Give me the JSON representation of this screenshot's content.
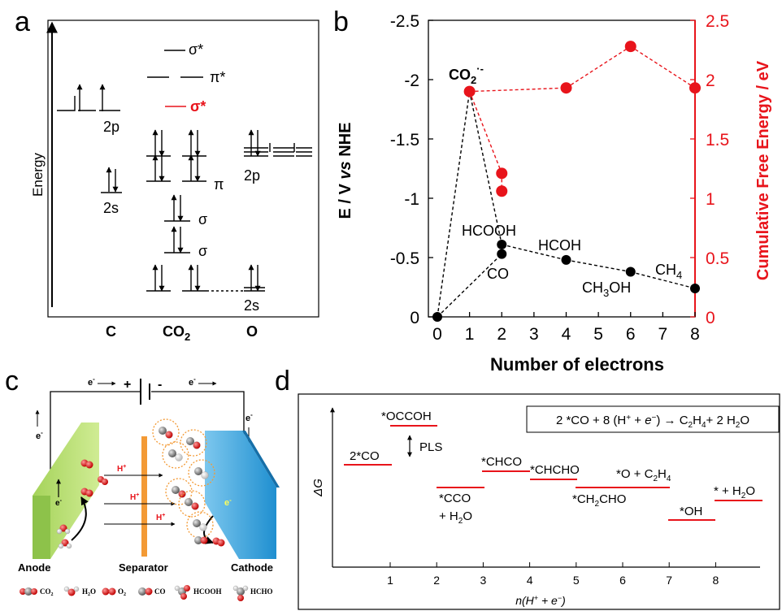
{
  "panel_a": {
    "letter": "a",
    "y_label": "Energy",
    "x_labels": [
      "C",
      "CO",
      "2",
      "O"
    ],
    "orbital_labels": {
      "c_2p": "2p",
      "c_2s": "2s",
      "sigma_star_top": "σ*",
      "pi_star": "π*",
      "sigma_star_red": "σ*",
      "pi": "π",
      "sigma_1": "σ",
      "sigma_2": "σ",
      "o_2p": "2p",
      "o_2s": "2s"
    },
    "colors": {
      "red": "#e8141b",
      "black": "#000000"
    }
  },
  "panel_b": {
    "letter": "b",
    "xlabel": "Number of electrons",
    "ylabel_left": "E / V vs NHE",
    "ylabel_left_parts": [
      "E / V ",
      "vs",
      " NHE"
    ],
    "ylabel_right": "Cumulative Free Energy / eV",
    "x_ticks": [
      "0",
      "1",
      "2",
      "3",
      "4",
      "5",
      "6",
      "7",
      "8"
    ],
    "y_left_ticks": [
      "-2.5",
      "-2",
      "-1.5",
      "-1",
      "-0.5",
      "0"
    ],
    "y_right_ticks": [
      "2.5",
      "2",
      "1.5",
      "1",
      "0.5",
      "0"
    ],
    "labels": {
      "co2_radical_main": "CO",
      "co2_radical_sub": "2",
      "co2_radical_sup": "·-",
      "hcooh": "HCOOH",
      "co": "CO",
      "hcoh": "HCOH",
      "ch4_main": "CH",
      "ch4_sub": "4",
      "ch3oh_a": "CH",
      "ch3oh_sub": "3",
      "ch3oh_b": "OH"
    },
    "colors": {
      "black": "#000000",
      "red": "#e8141b"
    }
  },
  "chart_data": [
    {
      "type": "line",
      "xlabel": "Number of electrons",
      "ylabel": "E / V vs NHE",
      "xlim": [
        0,
        8
      ],
      "ylim": [
        0,
        -2.5
      ],
      "axis_inverted": true,
      "series": [
        {
          "color": "#000000",
          "style": "dashed-with-markers",
          "points": [
            {
              "x": 0,
              "y": 0
            },
            {
              "x": 1,
              "y": -1.9
            },
            {
              "x": 2,
              "y": -0.61
            },
            {
              "x": 2,
              "y": -0.53
            },
            {
              "x": 4,
              "y": -0.48
            },
            {
              "x": 6,
              "y": -0.38
            },
            {
              "x": 8,
              "y": -0.24
            }
          ]
        }
      ]
    },
    {
      "type": "line",
      "xlabel": "Number of electrons",
      "ylabel": "Cumulative Free Energy / eV",
      "xlim": [
        0,
        8
      ],
      "ylim": [
        0,
        2.5
      ],
      "series": [
        {
          "color": "#e8141b",
          "style": "dashed-with-markers",
          "points": [
            {
              "x": 1,
              "y": 1.9
            },
            {
              "x": 2,
              "y": 1.21
            },
            {
              "x": 2,
              "y": 1.06
            },
            {
              "x": 4,
              "y": 1.93
            },
            {
              "x": 6,
              "y": 2.28
            },
            {
              "x": 8,
              "y": 1.93
            }
          ]
        }
      ]
    },
    {
      "type": "line",
      "xlabel": "n(H+ + e−)",
      "ylabel": "ΔG",
      "x_ticks": [
        "1",
        "2",
        "3",
        "4",
        "5",
        "6",
        "7",
        "8"
      ],
      "style": "free-energy-levels",
      "levels": [
        {
          "x": 0.5,
          "label": "2*CO",
          "rel_g": 0.0
        },
        {
          "x": 1.5,
          "label": "*OCCOH",
          "rel_g": 1.0
        },
        {
          "x": 2.5,
          "label": "*CCO + H2O",
          "rel_g": -0.35
        },
        {
          "x": 3.5,
          "label": "*CHCO",
          "rel_g": 0.15
        },
        {
          "x": 4.5,
          "label": "*CHCHO",
          "rel_g": 0.05
        },
        {
          "x": 5.5,
          "label": "*CH2CHO",
          "rel_g": -0.35
        },
        {
          "x": 6.5,
          "label": "*O + C2H4",
          "rel_g": -0.35
        },
        {
          "x": 7.5,
          "label": "*OH",
          "rel_g": -0.95
        },
        {
          "x": 8.5,
          "label": "* + H2O",
          "rel_g": -0.65
        }
      ]
    }
  ],
  "panel_c": {
    "letter": "c",
    "electron_labels": {
      "e_top_left": "e",
      "e_top_right": "e",
      "e_left_vertical": "e",
      "e_right_vertical": "e",
      "e_anode": "e",
      "e_cathode": "e",
      "minus_sup": "-"
    },
    "battery_plus": "+",
    "battery_minus": "-",
    "proton": "H",
    "proton_sup": "+",
    "anode_label": "Anode",
    "separator_label": "Separator",
    "cathode_label": "Cathode",
    "legend": [
      "CO2",
      "H2O",
      "O2",
      "CO",
      "HCOOH",
      "HCHO"
    ],
    "legend_text": {
      "co2": "CO",
      "co2_sub": "2",
      "h2o_a": "H",
      "h2o_sub": "2",
      "h2o_b": "O",
      "o2": "O",
      "o2_sub": "2",
      "co": "CO",
      "hcooh": "HCOOH",
      "hcho": "HCHO"
    },
    "colors": {
      "anode": "#b7dc6a",
      "cathode": "#2e9fd8",
      "separator": "#f39a35",
      "circle": "#f39a35",
      "proton": "#e8141b"
    }
  },
  "panel_d": {
    "letter": "d",
    "ylabel": "ΔG",
    "xlabel": "n(H+ + e−)",
    "x_ticks": [
      "1",
      "2",
      "3",
      "4",
      "5",
      "6",
      "7",
      "8"
    ],
    "reaction": "2 *CO + 8 (H+ + e−) → C2H4+ 2 H2O",
    "pls_label": "PLS",
    "state_labels": {
      "s0": "2*CO",
      "s1": "*OCCOH",
      "s2a": "*CCO",
      "s2b": "+ H2O",
      "s3": "*CHCO",
      "s4": "*CHCHO",
      "s5": "*CH2CHO",
      "s6": "*O + C2H4",
      "s7": "*OH",
      "s8": "* + H2O"
    },
    "colors": {
      "level": "#e8141b"
    }
  }
}
